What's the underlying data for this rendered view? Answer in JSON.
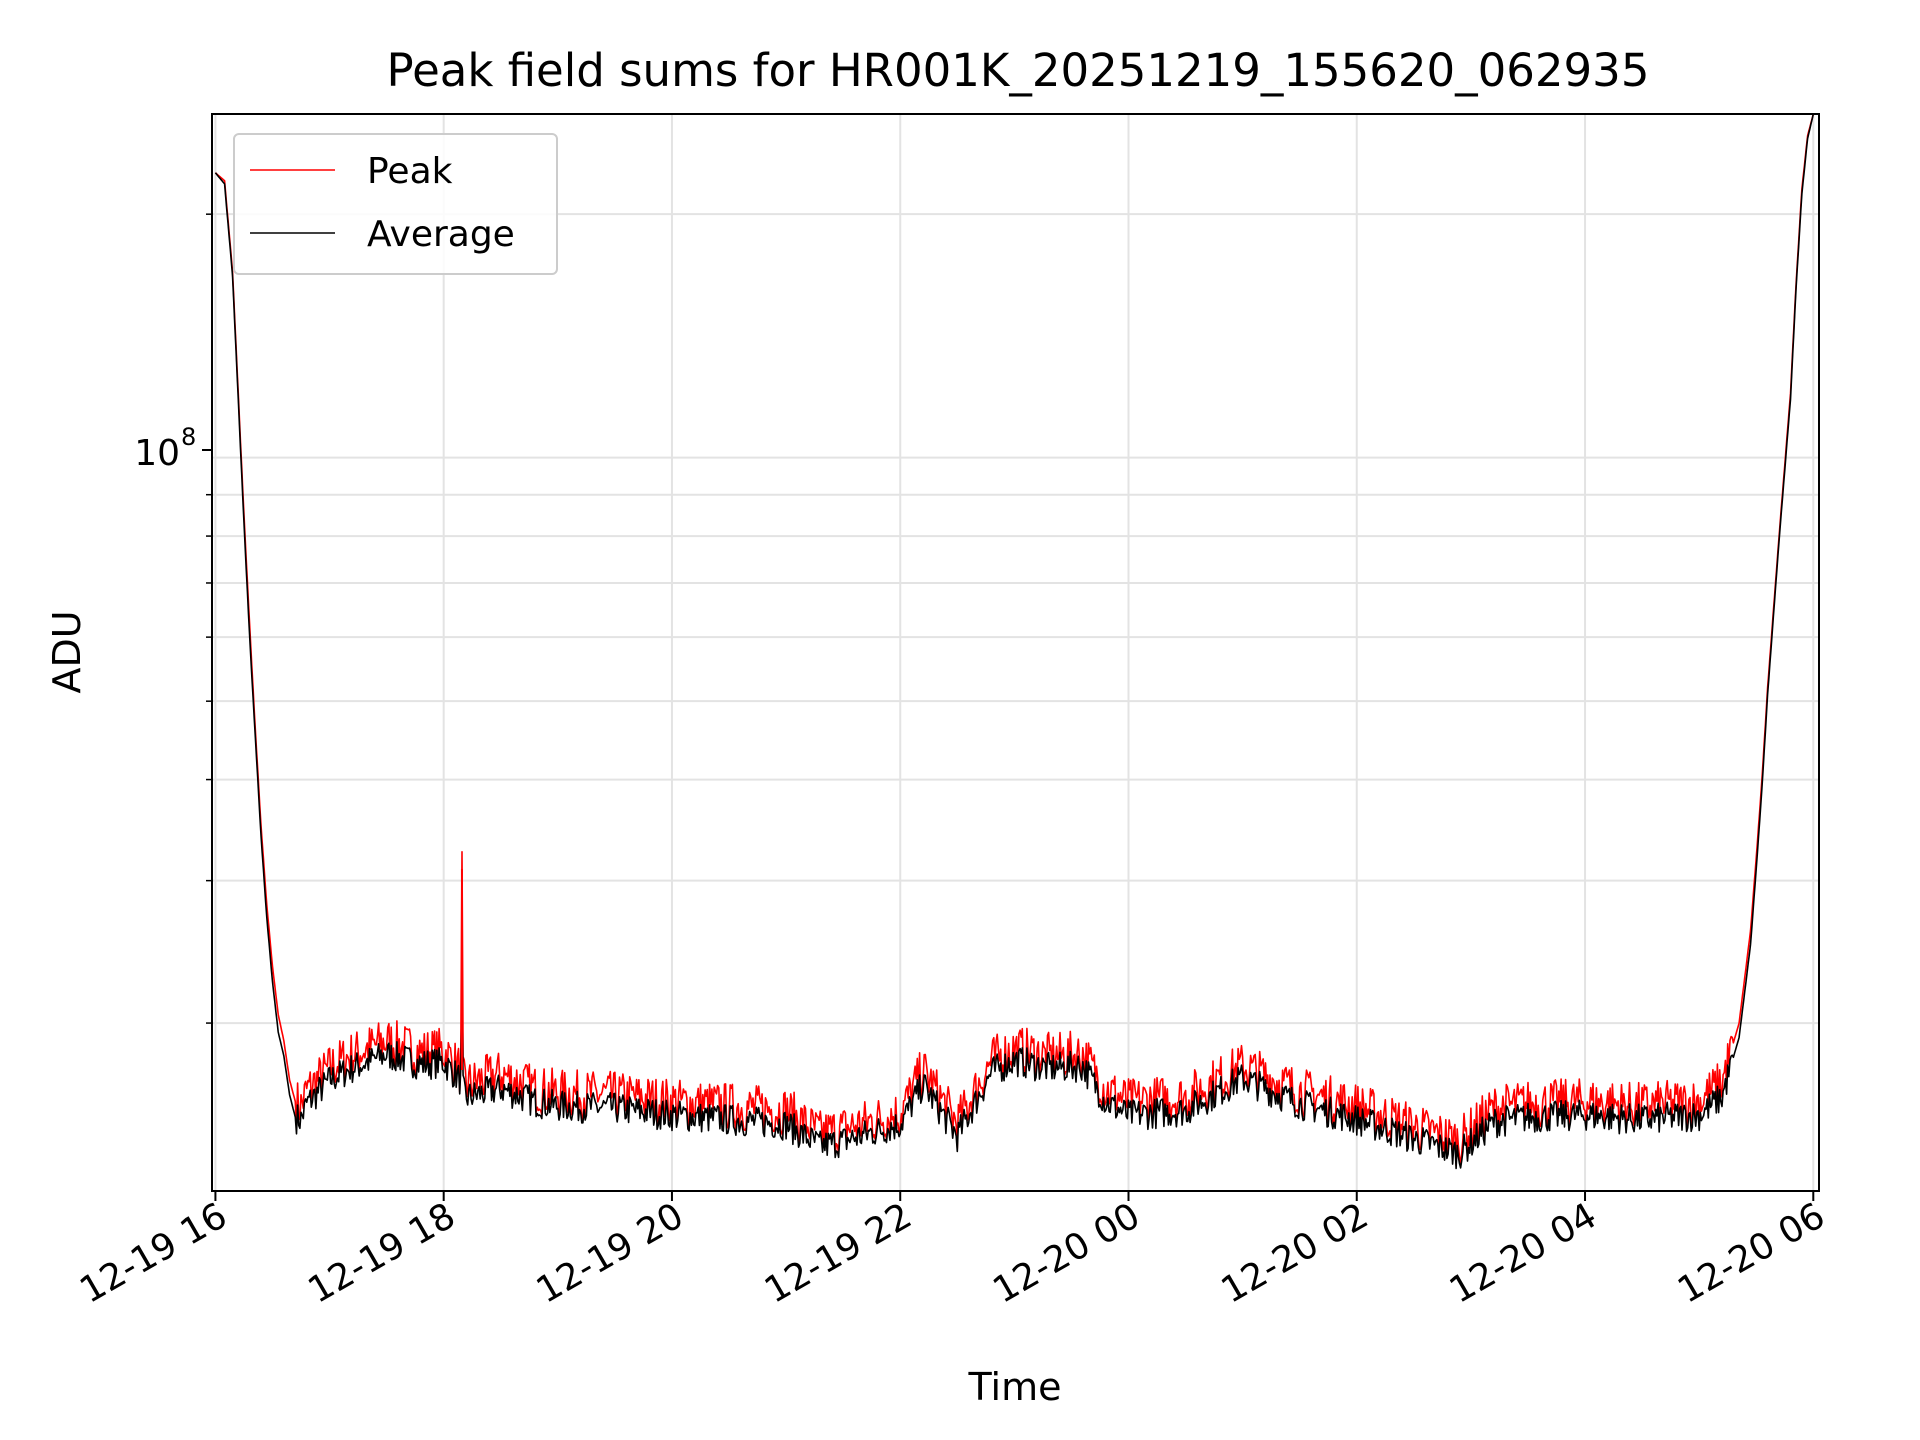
{
  "chart_data": {
    "type": "line",
    "title": "Peak field sums for HR001K_20251219_155620_062935",
    "xlabel": "Time",
    "ylabel": "ADU",
    "yscale": "log",
    "grid": true,
    "legend_position": "upper-left",
    "x_unit": "hours since 2025-12-19 16:00",
    "xlim": [
      -0.03,
      14.05
    ],
    "ylim": [
      12400000,
      266000000
    ],
    "x_ticks": [
      {
        "value": 0,
        "label": "12-19 16"
      },
      {
        "value": 2,
        "label": "12-19 18"
      },
      {
        "value": 4,
        "label": "12-19 20"
      },
      {
        "value": 6,
        "label": "12-19 22"
      },
      {
        "value": 8,
        "label": "12-20 00"
      },
      {
        "value": 10,
        "label": "12-20 02"
      },
      {
        "value": 12,
        "label": "12-20 04"
      },
      {
        "value": 14,
        "label": "12-20 06"
      }
    ],
    "y_major_tick": {
      "value": 100000000,
      "base": "10",
      "exp": "8"
    },
    "y_minor_ticks": [
      20000000,
      30000000,
      40000000,
      50000000,
      60000000,
      70000000,
      80000000,
      90000000,
      200000000
    ],
    "series": [
      {
        "name": "Peak",
        "color": "#ff0000",
        "x": [
          0,
          0.08,
          0.15,
          0.2,
          0.25,
          0.3,
          0.35,
          0.4,
          0.45,
          0.5,
          0.55,
          0.6,
          0.65,
          0.7,
          0.75,
          0.8,
          1.0,
          1.2,
          1.5,
          1.8,
          2.0,
          2.15,
          2.16,
          2.17,
          2.2,
          2.5,
          2.8,
          3.0,
          3.5,
          4.0,
          4.5,
          5.0,
          5.3,
          5.5,
          6.0,
          6.2,
          6.5,
          6.8,
          7.0,
          7.3,
          7.6,
          7.8,
          8.0,
          8.5,
          9.0,
          9.5,
          10.0,
          10.5,
          10.9,
          11.2,
          11.5,
          12.0,
          12.5,
          13.0,
          13.2,
          13.35,
          13.45,
          13.5,
          13.55,
          13.6,
          13.7,
          13.8,
          13.85,
          13.9,
          13.95,
          14.0
        ],
        "y": [
          225000000,
          220000000,
          170000000,
          120000000,
          85000000,
          62000000,
          46000000,
          35000000,
          28000000,
          23500000,
          20500000,
          19000000,
          17000000,
          16000000,
          15800000,
          16500000,
          17600000,
          18300000,
          19000000,
          18400000,
          18500000,
          17500000,
          31000000,
          17000000,
          16800000,
          17300000,
          16600000,
          16400000,
          16300000,
          16000000,
          15800000,
          15600000,
          14600000,
          14800000,
          15500000,
          17500000,
          15000000,
          18000000,
          18600000,
          18200000,
          18300000,
          16600000,
          16000000,
          16200000,
          17700000,
          16500000,
          15800000,
          14900000,
          14300000,
          15700000,
          15900000,
          16000000,
          15800000,
          16000000,
          16900000,
          20000000,
          26000000,
          32000000,
          40000000,
          52000000,
          80000000,
          120000000,
          165000000,
          215000000,
          250000000,
          266000000
        ]
      },
      {
        "name": "Average",
        "color": "#000000",
        "x": [
          0,
          0.08,
          0.15,
          0.2,
          0.25,
          0.3,
          0.35,
          0.4,
          0.45,
          0.5,
          0.55,
          0.6,
          0.65,
          0.7,
          0.75,
          0.8,
          1.0,
          1.2,
          1.5,
          1.8,
          2.0,
          2.15,
          2.16,
          2.17,
          2.2,
          2.5,
          2.8,
          3.0,
          3.5,
          4.0,
          4.5,
          5.0,
          5.3,
          5.5,
          6.0,
          6.2,
          6.5,
          6.8,
          7.0,
          7.3,
          7.6,
          7.8,
          8.0,
          8.5,
          9.0,
          9.5,
          10.0,
          10.5,
          10.9,
          11.2,
          11.5,
          12.0,
          12.5,
          13.0,
          13.2,
          13.35,
          13.45,
          13.5,
          13.55,
          13.6,
          13.7,
          13.8,
          13.85,
          13.9,
          13.95,
          14.0
        ],
        "y": [
          225000000,
          218000000,
          168000000,
          118000000,
          83000000,
          60000000,
          45000000,
          34000000,
          27000000,
          22500000,
          19500000,
          18200000,
          16300000,
          15300000,
          15200000,
          15900000,
          17000000,
          17600000,
          18300000,
          17800000,
          17900000,
          17000000,
          19500000,
          16500000,
          16200000,
          16600000,
          16000000,
          15800000,
          15700000,
          15400000,
          15200000,
          15000000,
          14100000,
          14300000,
          15000000,
          16800000,
          14500000,
          17400000,
          18000000,
          17600000,
          17700000,
          16000000,
          15400000,
          15600000,
          17100000,
          15900000,
          15200000,
          14400000,
          13800000,
          15100000,
          15300000,
          15400000,
          15200000,
          15400000,
          16200000,
          19200000,
          25000000,
          31000000,
          39000000,
          51000000,
          79000000,
          118000000,
          163000000,
          212000000,
          248000000,
          266000000
        ]
      }
    ]
  }
}
